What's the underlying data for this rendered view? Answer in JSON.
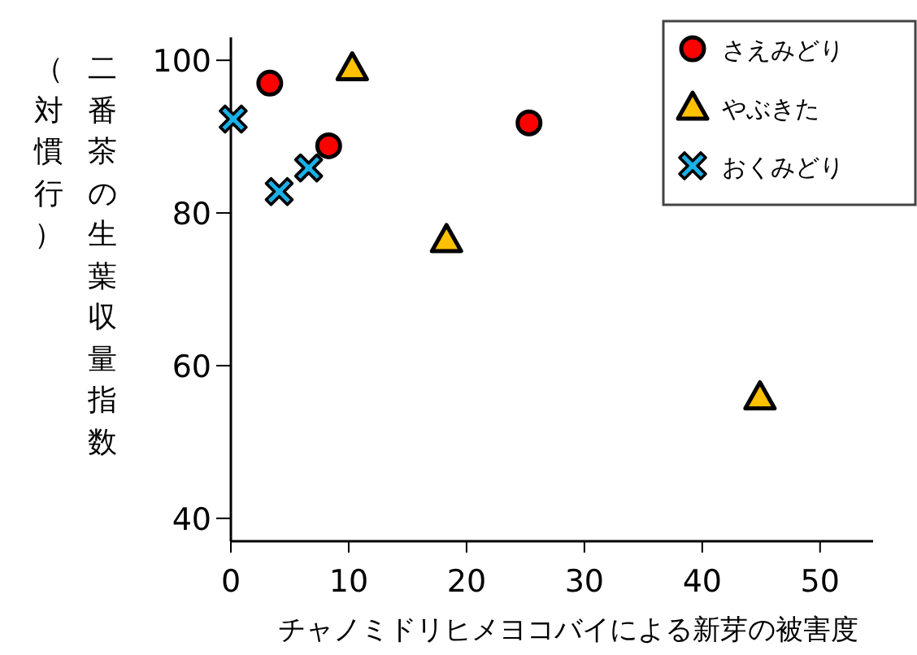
{
  "chart_data": {
    "type": "scatter",
    "xlabel": "チャノミドリヒメヨコバイによる新芽の被害度",
    "ylabel": "二番茶の生葉収量指数（対慣行）",
    "xlim": [
      0,
      54.5
    ],
    "xticks": [
      0,
      10,
      20,
      30,
      40,
      50
    ],
    "ylim": [
      37,
      103
    ],
    "yticks": [
      40,
      60,
      80,
      100
    ],
    "grid": false,
    "legend": "top right",
    "series": [
      {
        "name": "さえみどり",
        "color": "#ff0000",
        "marker": "circle",
        "x": [
          3.3,
          8.3,
          25.3
        ],
        "values": [
          97,
          88.8,
          91.8
        ]
      },
      {
        "name": "やぶきた",
        "color": "#ffc000",
        "marker": "triangle",
        "x": [
          10.3,
          18.3,
          44.9
        ],
        "values": [
          99,
          76.5,
          55.9
        ]
      },
      {
        "name": "おくみどり",
        "color": "#1ab0e8",
        "marker": "cross",
        "x": [
          0.2,
          4.1,
          6.6
        ],
        "values": [
          92.3,
          82.8,
          85.9
        ]
      }
    ]
  }
}
